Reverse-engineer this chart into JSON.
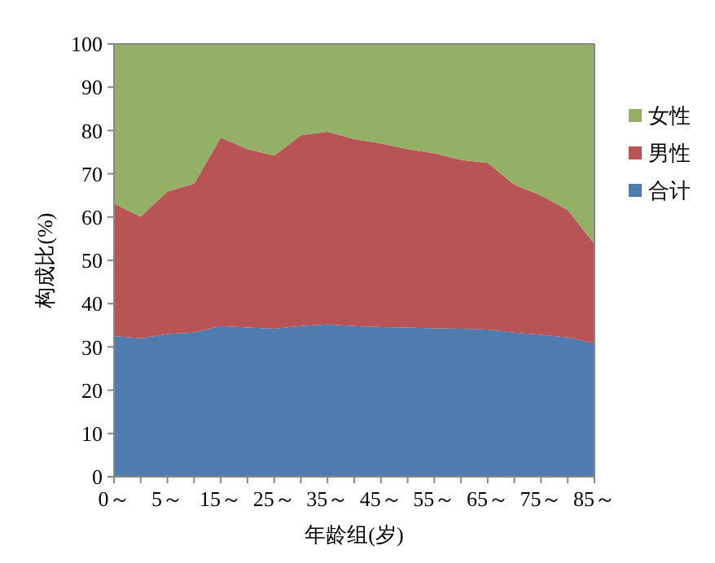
{
  "chart_data": {
    "type": "area",
    "stacked": true,
    "xlabel": "年龄组(岁)",
    "ylabel": "构成比(%)",
    "categories": [
      "0～",
      null,
      "5～",
      null,
      "15～",
      null,
      "25～",
      null,
      "35～",
      null,
      "45～",
      null,
      "55～",
      null,
      "65～",
      null,
      "75～",
      null,
      "85～"
    ],
    "ylim": [
      0,
      100
    ],
    "yticks": [
      0,
      10,
      20,
      30,
      40,
      50,
      60,
      70,
      80,
      90,
      100
    ],
    "grid": false,
    "legend": "right",
    "series": [
      {
        "name": "合计",
        "color": "#4f7bae",
        "values": [
          32.5,
          32,
          33,
          33.3,
          34.8,
          34.5,
          34.2,
          34.8,
          35.2,
          34.8,
          34.6,
          34.5,
          34.3,
          34.2,
          34,
          33.3,
          32.8,
          32.2,
          30.8
        ]
      },
      {
        "name": "男性",
        "color": "#b85455",
        "values": [
          30.6,
          28.1,
          32.9,
          34.4,
          43.6,
          41.2,
          40,
          44.1,
          44.5,
          43.2,
          42.4,
          41.2,
          40.4,
          39,
          38.5,
          34.2,
          32.2,
          29.4,
          23
        ]
      },
      {
        "name": "女性",
        "color": "#93b066",
        "values": [
          36.9,
          39.9,
          34.1,
          32.3,
          21.6,
          24.3,
          25.8,
          21.1,
          20.3,
          22,
          23,
          24.3,
          25.3,
          26.8,
          27.5,
          32.5,
          35,
          38.4,
          46.2
        ]
      }
    ]
  }
}
